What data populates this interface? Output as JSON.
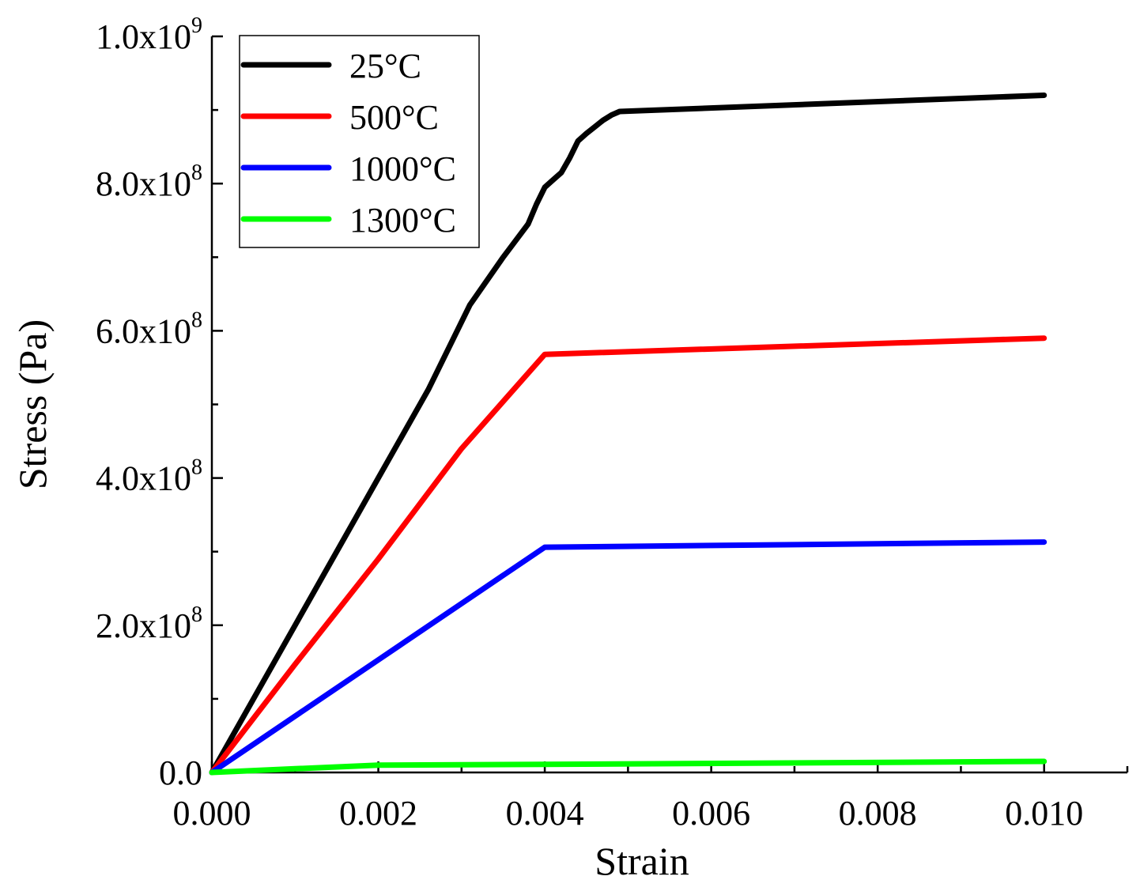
{
  "chart_data": {
    "type": "line",
    "title": "",
    "xlabel": "Strain",
    "ylabel": "Stress (Pa)",
    "xlim": [
      0,
      0.011
    ],
    "ylim": [
      0,
      1000000000
    ],
    "x_ticks": [
      {
        "value": 0.0,
        "label": "0.000"
      },
      {
        "value": 0.002,
        "label": "0.002"
      },
      {
        "value": 0.004,
        "label": "0.004"
      },
      {
        "value": 0.006,
        "label": "0.006"
      },
      {
        "value": 0.008,
        "label": "0.008"
      },
      {
        "value": 0.01,
        "label": "0.010"
      }
    ],
    "x_minor_ticks": [
      0.001,
      0.003,
      0.005,
      0.007,
      0.009,
      0.011
    ],
    "y_ticks": [
      {
        "value": 0,
        "mantissa": "0.0",
        "exp": ""
      },
      {
        "value": 200000000,
        "mantissa": "2.0x10",
        "exp": "8"
      },
      {
        "value": 400000000,
        "mantissa": "4.0x10",
        "exp": "8"
      },
      {
        "value": 600000000,
        "mantissa": "6.0x10",
        "exp": "8"
      },
      {
        "value": 800000000,
        "mantissa": "8.0x10",
        "exp": "8"
      },
      {
        "value": 1000000000,
        "mantissa": "1.0x10",
        "exp": "9"
      }
    ],
    "y_minor_ticks": [
      100000000,
      300000000,
      500000000,
      700000000,
      900000000
    ],
    "legend_position": "top-left",
    "series": [
      {
        "name": "25°C",
        "color": "#000000",
        "x": [
          0,
          0.001,
          0.002,
          0.0026,
          0.0031,
          0.0035,
          0.0038,
          0.0039,
          0.004,
          0.0041,
          0.0042,
          0.0043,
          0.0044,
          0.0045,
          0.0046,
          0.0047,
          0.0048,
          0.0049,
          0.01
        ],
        "y": [
          0,
          200000000,
          400000000,
          520000000,
          635000000,
          700000000,
          745000000,
          772000000,
          795000000,
          805000000,
          815000000,
          835000000,
          858000000,
          868000000,
          877000000,
          886000000,
          893000000,
          898000000,
          920000000
        ]
      },
      {
        "name": "500°C",
        "color": "#ff0000",
        "x": [
          0,
          0.001,
          0.002,
          0.003,
          0.004,
          0.01
        ],
        "y": [
          0,
          147000000,
          290000000,
          440000000,
          568000000,
          590000000
        ]
      },
      {
        "name": "1000°C",
        "color": "#0000ff",
        "x": [
          0,
          0.002,
          0.004,
          0.01
        ],
        "y": [
          0,
          153000000,
          306000000,
          313000000
        ]
      },
      {
        "name": "1300°C",
        "color": "#00ff00",
        "x": [
          0,
          0.001,
          0.002,
          0.004,
          0.01
        ],
        "y": [
          0,
          5000000,
          10000000,
          11000000,
          15000000
        ]
      }
    ]
  }
}
